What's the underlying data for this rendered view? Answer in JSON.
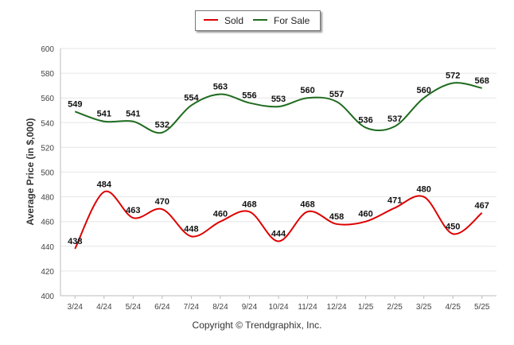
{
  "chart_data": {
    "type": "line",
    "ylabel": "Average Price (in $,000)",
    "ylim": [
      400,
      600
    ],
    "yticks": [
      400,
      420,
      440,
      460,
      480,
      500,
      520,
      540,
      560,
      580,
      600
    ],
    "categories": [
      "3/24",
      "4/24",
      "5/24",
      "6/24",
      "7/24",
      "8/24",
      "9/24",
      "10/24",
      "11/24",
      "12/24",
      "1/25",
      "2/25",
      "3/25",
      "4/25",
      "5/25"
    ],
    "series": [
      {
        "name": "Sold",
        "color": "#dd0000",
        "values": [
          438,
          484,
          463,
          470,
          448,
          460,
          468,
          444,
          468,
          458,
          460,
          471,
          480,
          450,
          467
        ]
      },
      {
        "name": "For Sale",
        "color": "#1e6b1e",
        "values": [
          549,
          541,
          541,
          532,
          554,
          563,
          556,
          553,
          560,
          557,
          536,
          537,
          560,
          572,
          568
        ]
      }
    ],
    "legend_position": "top-center",
    "grid": true
  },
  "copyright": "Copyright © Trendgraphix, Inc."
}
